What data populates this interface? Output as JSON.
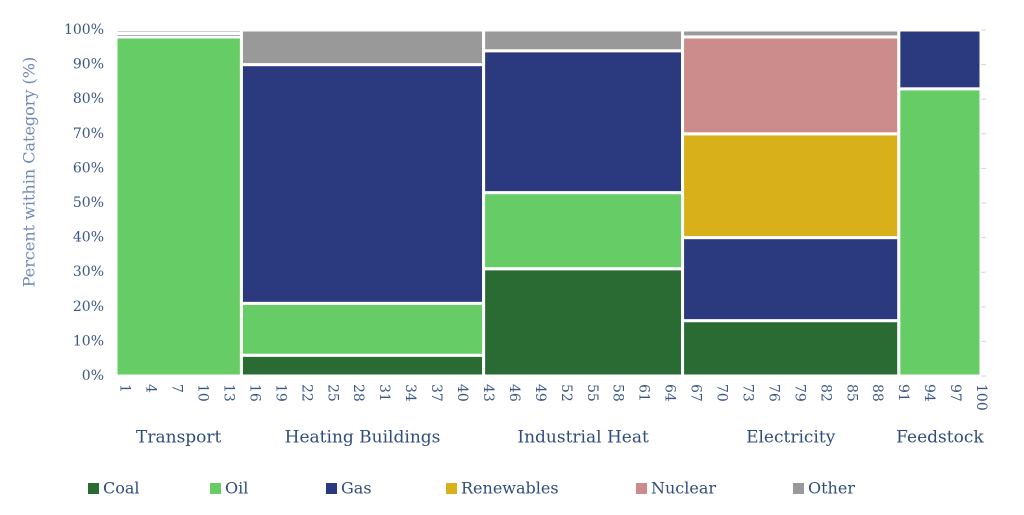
{
  "chart_data": {
    "type": "mekko",
    "ylabel": "Percent within Category (%)",
    "ylim": [
      0,
      100
    ],
    "yticks": [
      "0%",
      "10%",
      "20%",
      "30%",
      "40%",
      "50%",
      "60%",
      "70%",
      "80%",
      "90%",
      "100%"
    ],
    "xlim": [
      0,
      100
    ],
    "xticks": [
      "1",
      "4",
      "7",
      "10",
      "13",
      "16",
      "19",
      "22",
      "25",
      "28",
      "31",
      "34",
      "37",
      "40",
      "43",
      "46",
      "49",
      "52",
      "55",
      "58",
      "61",
      "64",
      "67",
      "70",
      "73",
      "76",
      "79",
      "82",
      "85",
      "88",
      "91",
      "94",
      "97",
      "100"
    ],
    "series": [
      {
        "name": "Coal",
        "color": "#2a6b34"
      },
      {
        "name": "Oil",
        "color": "#66cc66"
      },
      {
        "name": "Gas",
        "color": "#2b3a7e"
      },
      {
        "name": "Renewables",
        "color": "#d8b11a"
      },
      {
        "name": "Nuclear",
        "color": "#cc8c8c"
      },
      {
        "name": "Other",
        "color": "#999999"
      }
    ],
    "categories": [
      {
        "name": "Transport",
        "x0": 0,
        "x1": 14.5,
        "values": {
          "Coal": 0,
          "Oil": 98,
          "Gas": 1,
          "Renewables": 0,
          "Nuclear": 0,
          "Other": 1
        }
      },
      {
        "name": "Heating Buildings",
        "x0": 14.5,
        "x1": 42.5,
        "values": {
          "Coal": 6,
          "Oil": 15,
          "Gas": 69,
          "Renewables": 0,
          "Nuclear": 0,
          "Other": 10
        }
      },
      {
        "name": "Industrial Heat",
        "x0": 42.5,
        "x1": 65.5,
        "values": {
          "Coal": 31,
          "Oil": 22,
          "Gas": 41,
          "Renewables": 0,
          "Nuclear": 0,
          "Other": 6
        }
      },
      {
        "name": "Electricity",
        "x0": 65.5,
        "x1": 90.5,
        "values": {
          "Coal": 16,
          "Oil": 0,
          "Gas": 24,
          "Renewables": 30,
          "Nuclear": 28,
          "Other": 2
        }
      },
      {
        "name": "Feedstock",
        "x0": 90.5,
        "x1": 100,
        "values": {
          "Coal": 0,
          "Oil": 83,
          "Gas": 17,
          "Renewables": 0,
          "Nuclear": 0,
          "Other": 0
        }
      }
    ],
    "legend_position": "bottom",
    "grid": false
  }
}
